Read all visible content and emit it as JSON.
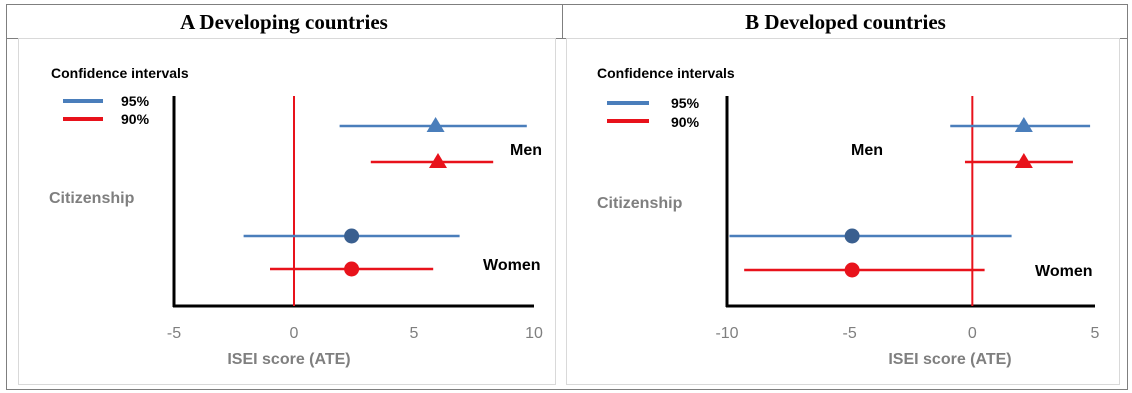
{
  "panels": [
    {
      "title": "A Developing countries",
      "legend_title": "Confidence intervals",
      "legend": [
        {
          "label": "95%",
          "color": "#4a7ebb"
        },
        {
          "label": "90%",
          "color": "#e8121b"
        }
      ],
      "side_label": "Citizenship",
      "xlabel": "ISEI score (ATE)",
      "group_labels": [
        "Men",
        "Women"
      ]
    },
    {
      "title": "B Developed countries",
      "legend_title": "Confidence intervals",
      "legend": [
        {
          "label": "95%",
          "color": "#4a7ebb"
        },
        {
          "label": "90%",
          "color": "#e8121b"
        }
      ],
      "side_label": "Citizenship",
      "xlabel": "ISEI score (ATE)",
      "group_labels": [
        "Men",
        "Women"
      ]
    }
  ],
  "chart_data": [
    {
      "type": "scatter",
      "title": "A Developing countries",
      "xlabel": "ISEI score (ATE)",
      "xlim": [
        -5,
        10
      ],
      "xticks": [
        "-5",
        "0",
        "5",
        "10"
      ],
      "reference_line": 0,
      "series": [
        {
          "group": "Men",
          "ci": "95%",
          "marker": "triangle",
          "estimate": 5.9,
          "lower": 1.9,
          "upper": 9.7
        },
        {
          "group": "Men",
          "ci": "90%",
          "marker": "triangle",
          "estimate": 6.0,
          "lower": 3.2,
          "upper": 8.3
        },
        {
          "group": "Women",
          "ci": "95%",
          "marker": "circle",
          "estimate": 2.4,
          "lower": -2.1,
          "upper": 6.9
        },
        {
          "group": "Women",
          "ci": "90%",
          "marker": "circle",
          "estimate": 2.4,
          "lower": -1.0,
          "upper": 5.8
        }
      ]
    },
    {
      "type": "scatter",
      "title": "B Developed countries",
      "xlabel": "ISEI score (ATE)",
      "xlim": [
        -10,
        5
      ],
      "xticks": [
        "-10",
        "-5",
        "0",
        "5"
      ],
      "reference_line": 0,
      "series": [
        {
          "group": "Men",
          "ci": "95%",
          "marker": "triangle",
          "estimate": 2.1,
          "lower": -0.9,
          "upper": 4.8
        },
        {
          "group": "Men",
          "ci": "90%",
          "marker": "triangle",
          "estimate": 2.1,
          "lower": -0.3,
          "upper": 4.1
        },
        {
          "group": "Women",
          "ci": "95%",
          "marker": "circle",
          "estimate": -4.9,
          "lower": -9.9,
          "upper": 1.6
        },
        {
          "group": "Women",
          "ci": "90%",
          "marker": "circle",
          "estimate": -4.9,
          "lower": -9.3,
          "upper": 0.5
        }
      ]
    }
  ]
}
